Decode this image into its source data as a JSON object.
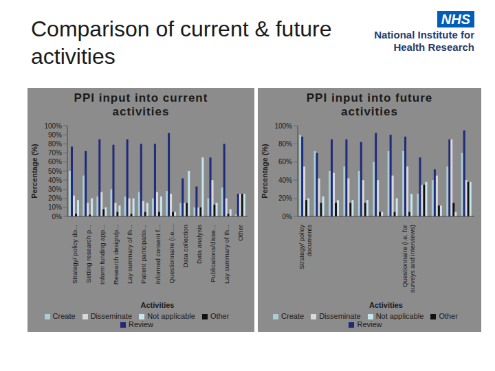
{
  "title": "Comparison of current & future activities",
  "logo": {
    "badge": "NHS",
    "text": "National Institute for Health Research"
  },
  "chart_data": [
    {
      "type": "bar",
      "title": "PPI input into current activities",
      "x_label": "Activities",
      "y_label": "Percentage (%)",
      "categories": [
        "Strategy/ policy do...",
        "Setting research p...",
        "Inform funding app...",
        "Research design/p...",
        "Lay summary of th...",
        "Patient participatio...",
        "Informed consent f...",
        "Questionnaire (i.e....",
        "Data collection",
        "Data analysis",
        "Publications/disse...",
        "Lay summary of th...",
        "Other"
      ],
      "series": [
        {
          "name": "Create",
          "color": "#a9cdd3",
          "values": [
            50,
            45,
            22,
            30,
            22,
            27,
            20,
            28,
            15,
            10,
            20,
            32,
            2
          ]
        },
        {
          "name": "Review",
          "color": "#1f2a7a",
          "values": [
            77,
            72,
            85,
            79,
            85,
            80,
            80,
            92,
            42,
            33,
            65,
            80,
            25
          ]
        },
        {
          "name": "Disseminate",
          "color": "#d9d9d9",
          "values": [
            23,
            15,
            27,
            15,
            20,
            17,
            27,
            25,
            15,
            10,
            40,
            20,
            25
          ]
        },
        {
          "name": "Other",
          "color": "#111111",
          "values": [
            3,
            2,
            8,
            5,
            3,
            5,
            5,
            5,
            15,
            10,
            13,
            3,
            25
          ]
        },
        {
          "name": "Not applicable",
          "color": "#c5e6ec",
          "values": [
            18,
            20,
            10,
            12,
            20,
            15,
            22,
            5,
            50,
            65,
            15,
            8,
            25
          ]
        }
      ],
      "ylim": [
        0,
        100
      ],
      "yticks": [
        {
          "value": 0,
          "label": "0%"
        },
        {
          "value": 10,
          "label": "10%"
        },
        {
          "value": 20,
          "label": "20%"
        },
        {
          "value": 30,
          "label": "30%"
        },
        {
          "value": 40,
          "label": "40%"
        },
        {
          "value": 50,
          "label": "50%"
        },
        {
          "value": 60,
          "label": "60%"
        },
        {
          "value": 70,
          "label": "70%"
        },
        {
          "value": 80,
          "label": "80%"
        },
        {
          "value": 90,
          "label": "90%"
        },
        {
          "value": 100,
          "label": "100%"
        }
      ],
      "legend": "bottom"
    },
    {
      "type": "bar",
      "title": "PPI input into future activities",
      "x_label": "Activities",
      "y_label": "Percentage (%)",
      "categories": [
        "Strategy/ policy documents",
        null,
        null,
        null,
        null,
        null,
        null,
        "Questionnaire (i.e. for surveys and interviews)",
        null,
        null,
        null,
        null
      ],
      "series": [
        {
          "name": "Create",
          "color": "#a9cdd3",
          "values": [
            90,
            72,
            50,
            55,
            50,
            60,
            72,
            72,
            25,
            40,
            55,
            70
          ]
        },
        {
          "name": "Review",
          "color": "#1f2a7a",
          "values": [
            88,
            70,
            85,
            85,
            82,
            92,
            90,
            88,
            65,
            52,
            85,
            95
          ]
        },
        {
          "name": "Disseminate",
          "color": "#d9d9d9",
          "values": [
            55,
            42,
            48,
            42,
            40,
            40,
            45,
            55,
            35,
            45,
            85,
            40
          ]
        },
        {
          "name": "Other",
          "color": "#111111",
          "values": [
            18,
            15,
            15,
            15,
            15,
            5,
            5,
            5,
            35,
            12,
            15,
            38
          ]
        },
        {
          "name": "Not applicable",
          "color": "#c5e6ec",
          "values": [
            20,
            22,
            18,
            18,
            18,
            5,
            20,
            25,
            38,
            12,
            5,
            38
          ]
        }
      ],
      "ylim": [
        0,
        100
      ],
      "yticks": [
        {
          "value": 0,
          "label": "0%"
        },
        {
          "value": 20,
          "label": "20%"
        },
        {
          "value": 40,
          "label": "40%"
        },
        {
          "value": 60,
          "label": "60%"
        },
        {
          "value": 80,
          "label": "80%"
        },
        {
          "value": 100,
          "label": "100%"
        }
      ],
      "legend": "bottom"
    }
  ]
}
